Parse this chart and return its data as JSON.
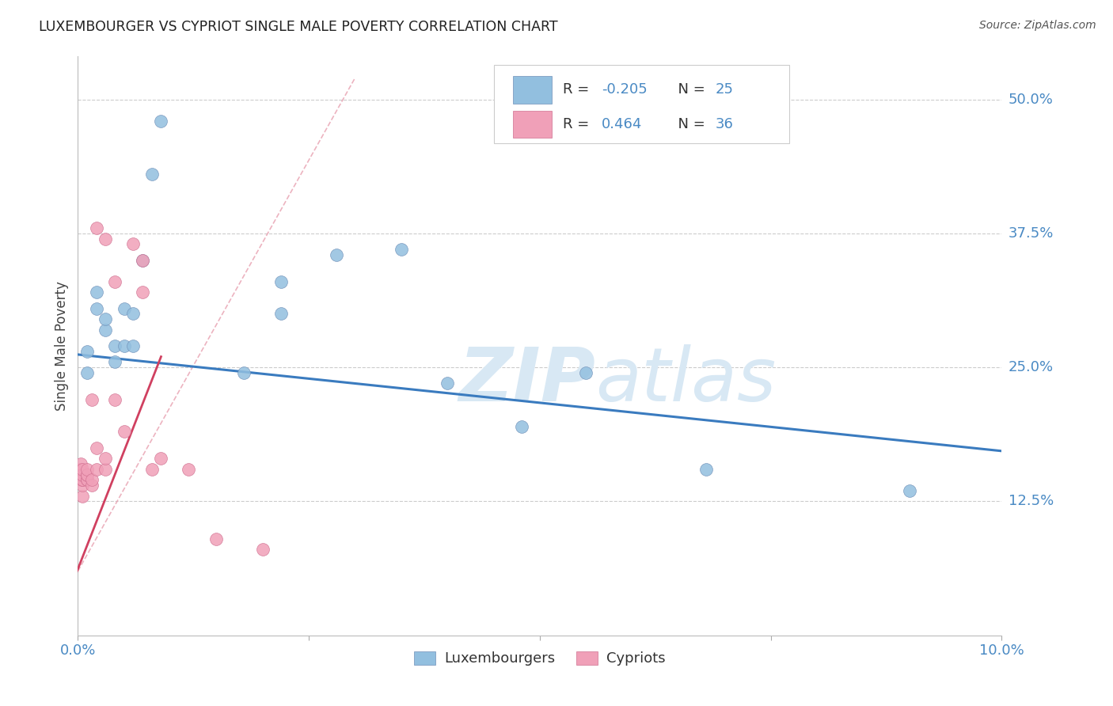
{
  "title": "LUXEMBOURGER VS CYPRIOT SINGLE MALE POVERTY CORRELATION CHART",
  "source": "Source: ZipAtlas.com",
  "ylabel_label": "Single Male Poverty",
  "xlim": [
    0.0,
    0.1
  ],
  "ylim": [
    0.0,
    0.54
  ],
  "ytick_positions": [
    0.125,
    0.25,
    0.375,
    0.5
  ],
  "ytick_labels": [
    "12.5%",
    "25.0%",
    "37.5%",
    "50.0%"
  ],
  "grid_color": "#cccccc",
  "background_color": "#ffffff",
  "lux_color": "#92bfdf",
  "cyp_color": "#f0a0b8",
  "lux_line_color": "#3a7bbf",
  "cyp_line_color": "#d04060",
  "cyp_dash_color": "#e8a0b0",
  "R_lux": -0.205,
  "N_lux": 25,
  "R_cyp": 0.464,
  "N_cyp": 36,
  "lux_x": [
    0.001,
    0.001,
    0.002,
    0.002,
    0.003,
    0.003,
    0.004,
    0.004,
    0.005,
    0.005,
    0.006,
    0.006,
    0.007,
    0.008,
    0.009,
    0.018,
    0.022,
    0.022,
    0.028,
    0.035,
    0.04,
    0.048,
    0.055,
    0.068,
    0.09
  ],
  "lux_y": [
    0.265,
    0.245,
    0.305,
    0.32,
    0.285,
    0.295,
    0.27,
    0.255,
    0.305,
    0.27,
    0.27,
    0.3,
    0.35,
    0.43,
    0.48,
    0.245,
    0.3,
    0.33,
    0.355,
    0.36,
    0.235,
    0.195,
    0.245,
    0.155,
    0.135
  ],
  "cyp_x": [
    0.0003,
    0.0003,
    0.0003,
    0.0003,
    0.0003,
    0.0005,
    0.0005,
    0.0005,
    0.0005,
    0.0005,
    0.0005,
    0.001,
    0.001,
    0.001,
    0.001,
    0.001,
    0.0015,
    0.0015,
    0.0015,
    0.002,
    0.002,
    0.002,
    0.003,
    0.003,
    0.003,
    0.004,
    0.004,
    0.005,
    0.006,
    0.007,
    0.007,
    0.008,
    0.009,
    0.012,
    0.015,
    0.02
  ],
  "cyp_y": [
    0.145,
    0.15,
    0.155,
    0.155,
    0.16,
    0.13,
    0.14,
    0.145,
    0.145,
    0.15,
    0.155,
    0.145,
    0.145,
    0.15,
    0.15,
    0.155,
    0.14,
    0.145,
    0.22,
    0.155,
    0.175,
    0.38,
    0.155,
    0.165,
    0.37,
    0.22,
    0.33,
    0.19,
    0.365,
    0.32,
    0.35,
    0.155,
    0.165,
    0.155,
    0.09,
    0.08
  ],
  "watermark_color": "#d8e8f4"
}
